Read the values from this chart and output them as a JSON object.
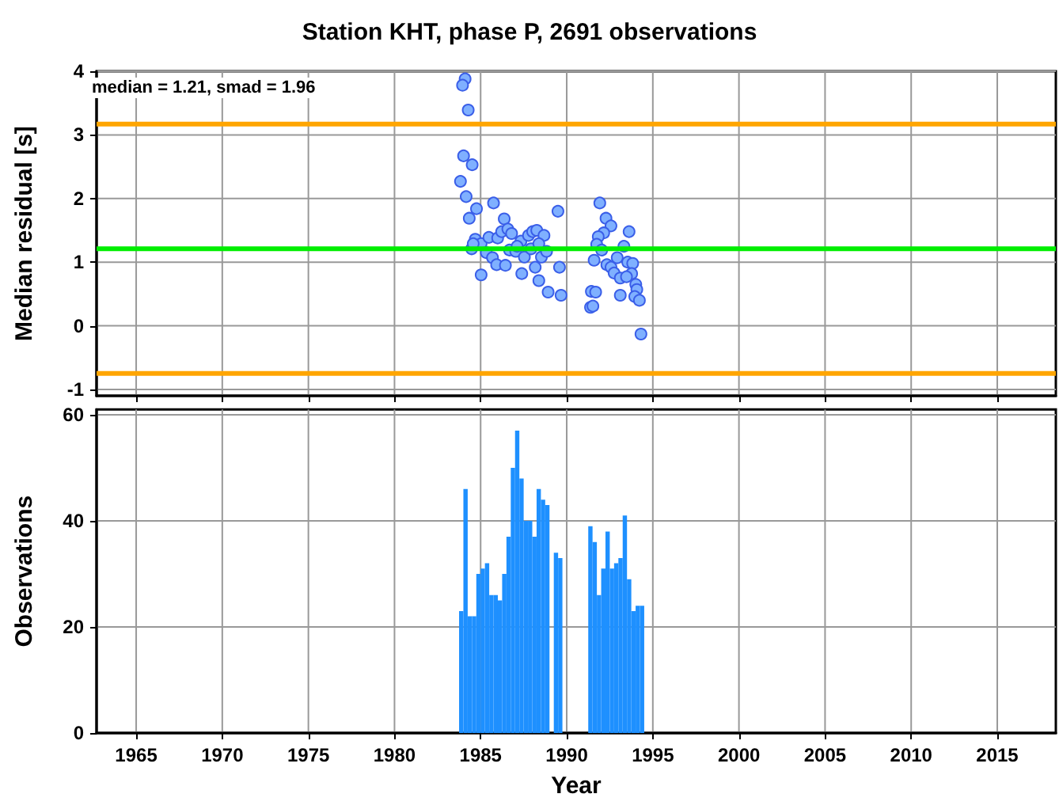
{
  "chart_data": [
    {
      "type": "scatter",
      "title": "Station KHT, phase P, 2691 observations",
      "ylabel": "Median residual [s]",
      "annotations": [
        "median = 1.21, smad = 1.96"
      ],
      "x": [
        1984.1,
        1983.95,
        1984.28,
        1984.01,
        1984.51,
        1983.83,
        1984.16,
        1984.76,
        1984.34,
        1985.75,
        1989.49,
        1986.37,
        1984.69,
        1984.48,
        1985.03,
        1985.48,
        1985.99,
        1986.22,
        1986.58,
        1986.8,
        1985.33,
        1985.69,
        1985.93,
        1985.03,
        1986.44,
        1986.68,
        1987.04,
        1987.34,
        1987.54,
        1987.39,
        1987.78,
        1988.02,
        1988.26,
        1988.17,
        1987.93,
        1988.38,
        1988.53,
        1988.68,
        1988.83,
        1988.92,
        1989.58,
        1989.67,
        1988.38,
        1987.12,
        1991.92,
        1992.28,
        1992.57,
        1993.62,
        1992.15,
        1991.83,
        1991.74,
        1992.03,
        1991.59,
        1993.32,
        1992.33,
        1992.57,
        1992.93,
        1992.75,
        1993.11,
        1993.54,
        1993.83,
        1993.77,
        1993.47,
        1994.01,
        1994.07,
        1993.95,
        1994.22,
        1993.11,
        1991.43,
        1991.68,
        1991.38,
        1991.52,
        1994.31,
        1984.57
      ],
      "values": [
        3.88,
        3.78,
        3.39,
        2.67,
        2.53,
        2.27,
        2.03,
        1.84,
        1.69,
        1.93,
        1.8,
        1.68,
        1.36,
        1.21,
        1.29,
        1.39,
        1.38,
        1.48,
        1.52,
        1.45,
        1.15,
        1.07,
        0.96,
        0.8,
        0.95,
        1.19,
        1.17,
        1.33,
        1.08,
        0.82,
        1.42,
        1.48,
        1.5,
        0.92,
        1.21,
        0.71,
        1.08,
        1.42,
        1.17,
        0.53,
        0.92,
        0.48,
        1.29,
        1.25,
        1.93,
        1.69,
        1.57,
        1.48,
        1.46,
        1.4,
        1.28,
        1.19,
        1.03,
        1.25,
        0.96,
        0.92,
        1.07,
        0.83,
        0.75,
        1.0,
        0.98,
        0.82,
        0.77,
        0.65,
        0.57,
        0.46,
        0.4,
        0.48,
        0.54,
        0.53,
        0.29,
        0.31,
        -0.13,
        1.29
      ],
      "color": "#7fb0ff",
      "marker": "circle",
      "xlim": [
        1962.7,
        2018.4
      ],
      "xticks": [
        1965,
        1970,
        1975,
        1980,
        1985,
        1990,
        1995,
        2000,
        2005,
        2010,
        2015
      ],
      "ylim": [
        -1.1,
        4
      ],
      "yticks": [
        -1,
        0,
        1,
        2,
        3,
        4
      ],
      "grid": true,
      "tick_labels": "y",
      "ref_lines": [
        {
          "axis": "y",
          "value": 1.21,
          "color": "#00ee00"
        },
        {
          "axis": "y",
          "value": 3.17,
          "color": "#ffa500"
        },
        {
          "axis": "y",
          "value": -0.75,
          "color": "#ffa500"
        }
      ]
    },
    {
      "type": "histogram",
      "xlabel": "Year",
      "ylabel": "Observations",
      "color": "#1e90ff",
      "bins": [
        1983.75,
        1984,
        1984.25,
        1984.5,
        1984.75,
        1985,
        1985.25,
        1985.5,
        1985.75,
        1986,
        1986.25,
        1986.5,
        1986.75,
        1987,
        1987.25,
        1987.5,
        1987.75,
        1988,
        1988.25,
        1988.5,
        1988.75,
        1989,
        1989.25,
        1989.5,
        1989.75,
        1990,
        1990.25,
        1990.5,
        1990.75,
        1991,
        1991.25,
        1991.5,
        1991.75,
        1992,
        1992.25,
        1992.5,
        1992.75,
        1993,
        1993.25,
        1993.5,
        1993.75,
        1994,
        1994.25,
        1994.5
      ],
      "values": [
        23,
        46,
        22,
        22,
        30,
        31,
        32,
        26,
        26,
        25,
        30,
        37,
        50,
        57,
        48,
        40,
        40,
        37,
        46,
        44,
        43,
        0,
        34,
        33,
        0,
        0,
        0,
        0,
        0,
        0,
        39,
        36,
        26,
        31,
        38,
        31,
        32,
        33,
        41,
        29,
        23,
        24,
        24
      ],
      "xlim": [
        1962.7,
        2018.4
      ],
      "xticks": [
        1965,
        1970,
        1975,
        1980,
        1985,
        1990,
        1995,
        2000,
        2005,
        2010,
        2015
      ],
      "ylim": [
        0,
        61
      ],
      "yticks": [
        0,
        20,
        40,
        60
      ],
      "grid": true
    }
  ]
}
